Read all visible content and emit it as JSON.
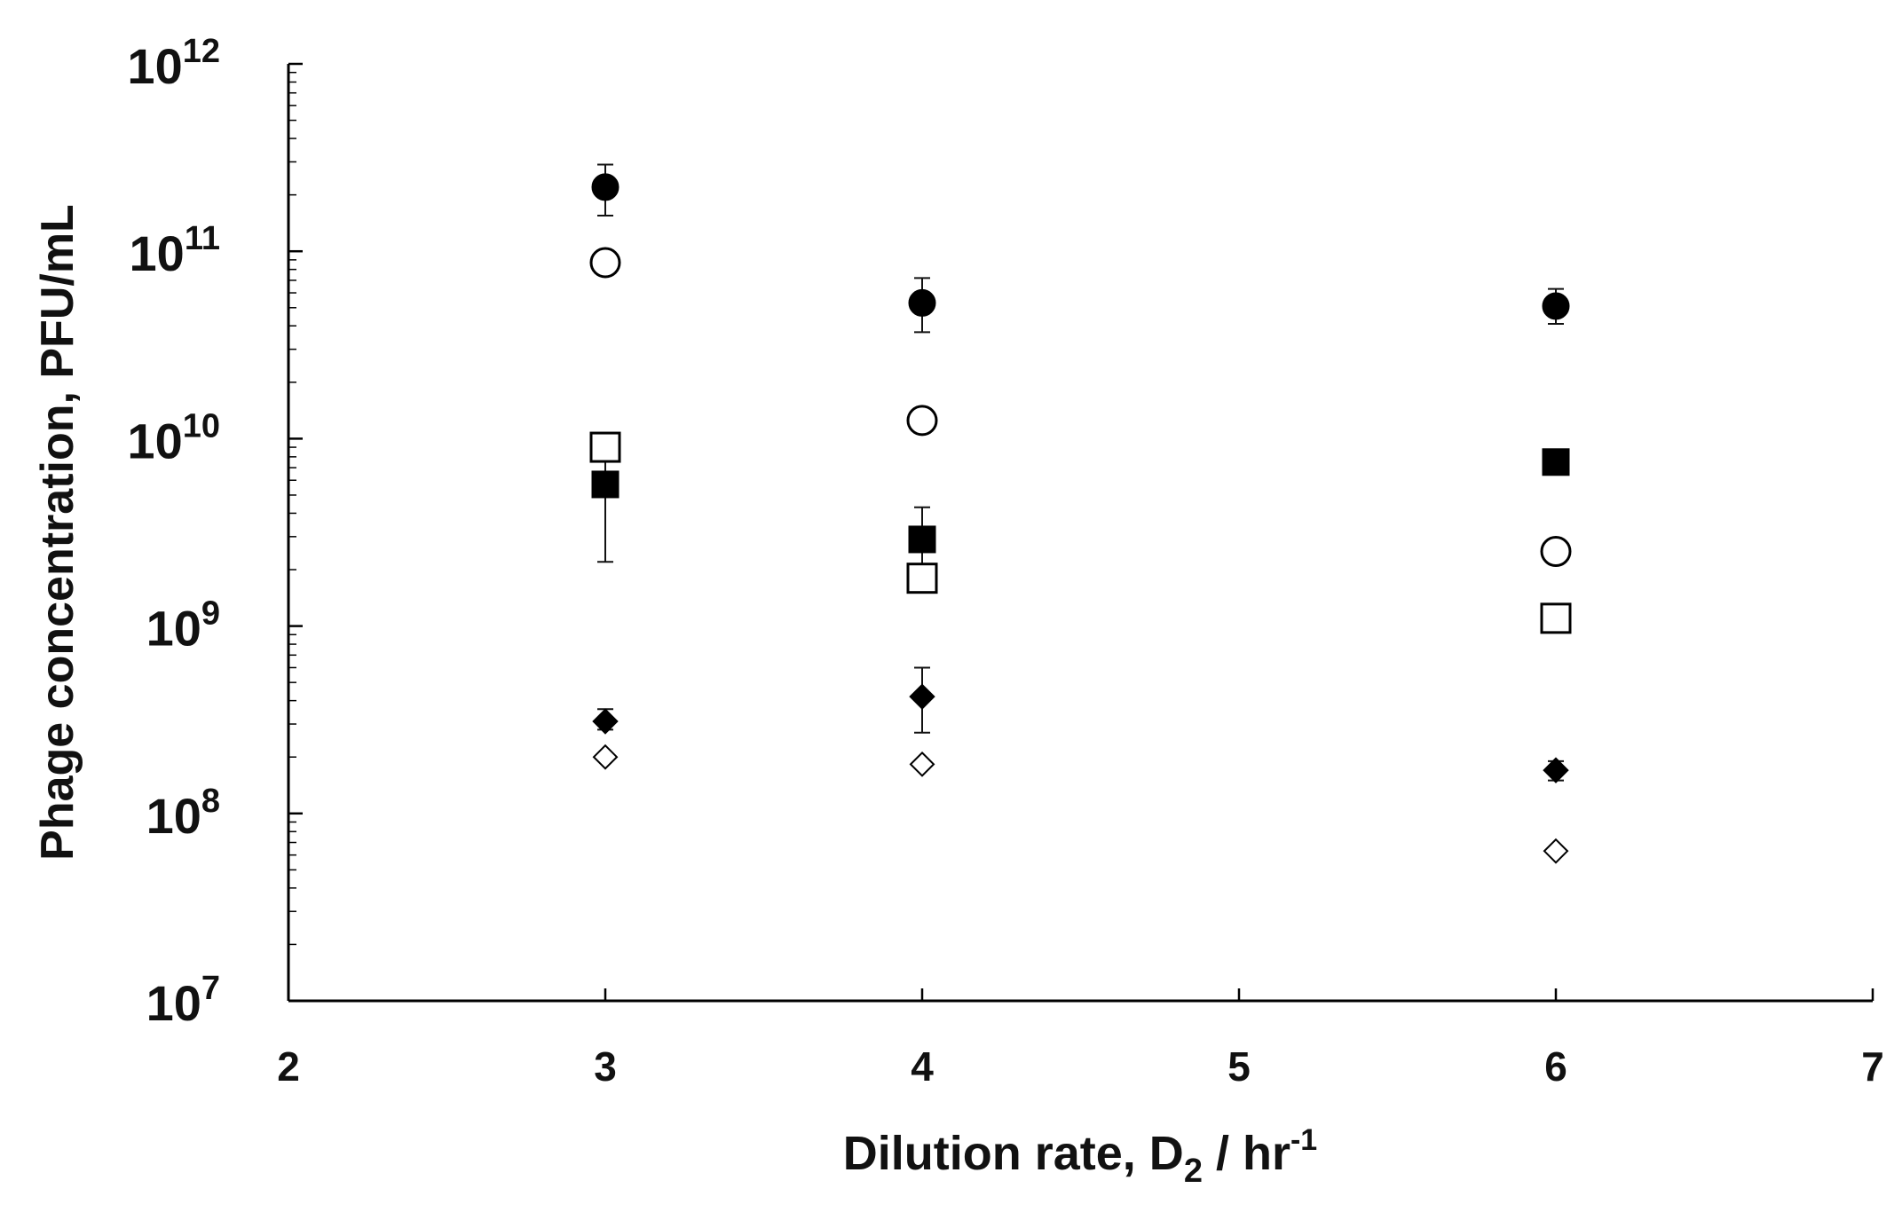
{
  "chart_data": {
    "type": "scatter",
    "title": "",
    "xlabel": {
      "main": "Dilution rate, D",
      "subscript": "2",
      "unit_main": " / hr",
      "unit_superscript": "-1"
    },
    "ylabel": "Phage concentration, PFU/mL",
    "xlim": [
      2,
      7
    ],
    "ylim": [
      10000000,
      1000000000000
    ],
    "yscale": "log",
    "xticks": [
      2,
      3,
      4,
      5,
      6,
      7
    ],
    "yticks": [
      {
        "value": 10000000,
        "base": "10",
        "exponent": "7"
      },
      {
        "value": 100000000,
        "base": "10",
        "exponent": "8"
      },
      {
        "value": 1000000000,
        "base": "10",
        "exponent": "9"
      },
      {
        "value": 10000000000,
        "base": "10",
        "exponent": "10"
      },
      {
        "value": 100000000000,
        "base": "10",
        "exponent": "11"
      },
      {
        "value": 1000000000000,
        "base": "10",
        "exponent": "12"
      }
    ],
    "grid": false,
    "legend": "none",
    "series": [
      {
        "marker": "circle",
        "filled": true,
        "x": [
          3,
          4,
          6
        ],
        "y": [
          220000000000,
          53000000000,
          51000000000
        ],
        "err_low": [
          155000000000,
          37000000000,
          41000000000
        ],
        "err_high": [
          290000000000,
          72000000000,
          63000000000
        ]
      },
      {
        "marker": "circle",
        "filled": false,
        "x": [
          3,
          4,
          6
        ],
        "y": [
          87000000000,
          12500000000,
          2500000000
        ],
        "err_low": [
          null,
          null,
          null
        ],
        "err_high": [
          null,
          null,
          null
        ]
      },
      {
        "marker": "square",
        "filled": true,
        "x": [
          3,
          4,
          6
        ],
        "y": [
          5700000000,
          2900000000,
          7500000000
        ],
        "err_low": [
          2200000000,
          1800000000,
          6500000000
        ],
        "err_high": [
          9500000000,
          4300000000,
          8500000000
        ]
      },
      {
        "marker": "square",
        "filled": false,
        "x": [
          3,
          4,
          6
        ],
        "y": [
          9000000000,
          1800000000,
          1100000000
        ],
        "err_low": [
          null,
          1550000000,
          null
        ],
        "err_high": [
          null,
          2100000000,
          null
        ]
      },
      {
        "marker": "diamond",
        "filled": true,
        "x": [
          3,
          4,
          6
        ],
        "y": [
          310000000,
          420000000,
          170000000
        ],
        "err_low": [
          280000000,
          270000000,
          150000000
        ],
        "err_high": [
          360000000,
          600000000,
          190000000
        ]
      },
      {
        "marker": "diamond",
        "filled": false,
        "x": [
          3,
          4,
          6
        ],
        "y": [
          200000000,
          183000000,
          63000000
        ],
        "err_low": [
          null,
          null,
          null
        ],
        "err_high": [
          null,
          null,
          null
        ]
      }
    ]
  }
}
